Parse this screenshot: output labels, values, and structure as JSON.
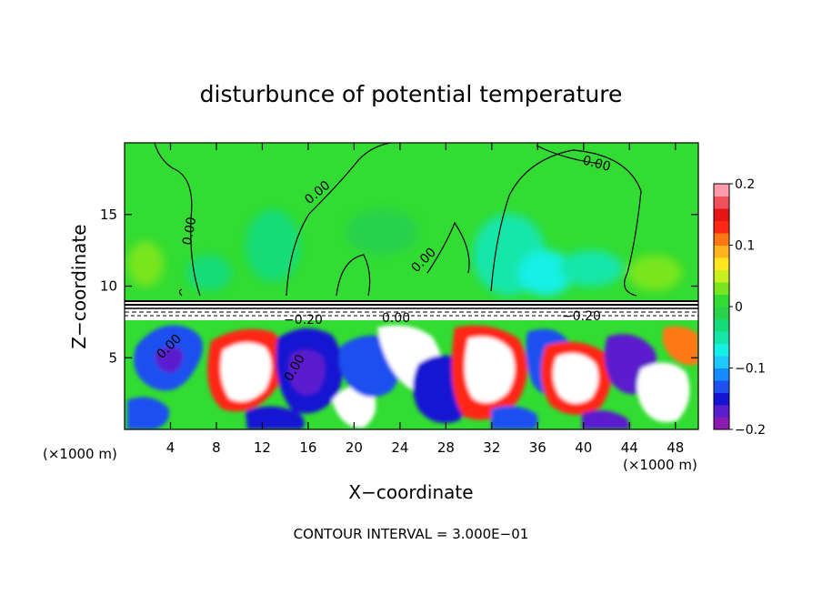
{
  "chart_data": {
    "type": "heatmap",
    "title": "disturbunce of potential temperature",
    "xlabel": "X−coordinate",
    "ylabel": "Z−coordinate",
    "x_unit_left": "(×1000 m)",
    "x_unit_right": "(×1000 m)",
    "footer": "CONTOUR INTERVAL = 3.000E−01",
    "xlim": [
      0,
      50
    ],
    "ylim": [
      0,
      20
    ],
    "xticks": [
      4,
      8,
      12,
      16,
      20,
      24,
      28,
      32,
      36,
      40,
      44,
      48
    ],
    "yticks": [
      5,
      10,
      15
    ],
    "colorbar": {
      "range": [
        -0.2,
        0.2
      ],
      "ticks": [
        {
          "value": 0.2,
          "label": "0.2"
        },
        {
          "value": 0.1,
          "label": "0.1"
        },
        {
          "value": 0.0,
          "label": "0"
        },
        {
          "value": -0.1,
          "label": "−0.1"
        },
        {
          "value": -0.2,
          "label": "−0.2"
        }
      ],
      "colors": [
        "#8c1ab0",
        "#5a1ecc",
        "#1414d2",
        "#1e50f0",
        "#148cff",
        "#1ec8ff",
        "#14f0e6",
        "#14e6aa",
        "#14dc78",
        "#28d24b",
        "#32dc32",
        "#78e61e",
        "#c8f01e",
        "#ffe61e",
        "#ffb41e",
        "#ff7814",
        "#ff2814",
        "#e61414",
        "#f0505a",
        "#ff9ca8"
      ]
    },
    "contour_labels": [
      "0.00",
      "0.00",
      "0.00",
      "0.00",
      "0.00",
      "0.00",
      "−0.20",
      "0.00",
      "−0.20"
    ],
    "field_description": "upper region near 0 (green); stratified band near z=8-9; strong positive/negative turbulent anomalies below z=8"
  }
}
